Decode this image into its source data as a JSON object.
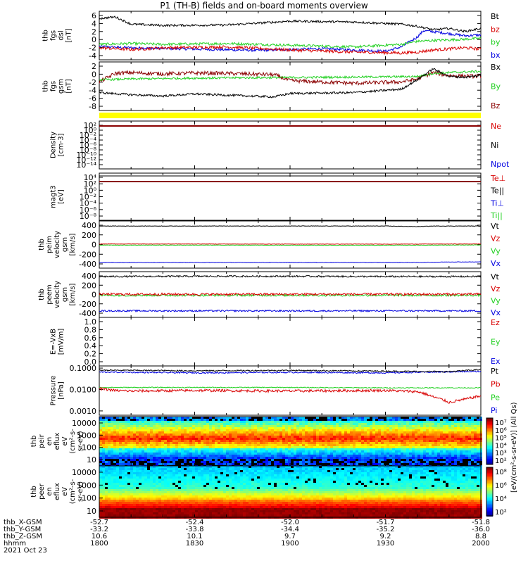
{
  "title": "P1 (TH-B) fields and on-board moments overview",
  "colors": {
    "black": "#000000",
    "red": "#d80000",
    "green": "#20d020",
    "blue": "#0000e0",
    "darkred": "#8a0000",
    "yellow": "#ffff00"
  },
  "chart_data": {
    "type": "line",
    "time_range": [
      "18:00",
      "20:00"
    ],
    "panels": [
      {
        "id": "fgs_dsl",
        "ylabel": [
          "thb",
          "fgs",
          "dsl",
          "[nT]"
        ],
        "yticks": [
          "6",
          "4",
          "2",
          "0",
          "-2",
          "-4"
        ],
        "ylim": [
          -4.8,
          6.5
        ],
        "series": [
          {
            "name": "Bt",
            "color": "black",
            "times": [
              0,
              5,
              10,
              20,
              40,
              60,
              80,
              95,
              100,
              105,
              110,
              115,
              120
            ],
            "values": [
              4.8,
              5.2,
              3.5,
              3.2,
              3.3,
              4.2,
              4.0,
              3.5,
              3.0,
              2.2,
              2.5,
              1.8,
              2.5
            ],
            "noise": 0.25
          },
          {
            "name": "bz",
            "color": "red",
            "times": [
              0,
              10,
              20,
              40,
              60,
              80,
              95,
              100,
              105,
              115,
              120
            ],
            "values": [
              -2.0,
              -2.4,
              -2.0,
              -1.8,
              -2.5,
              -3.0,
              -3.2,
              -3.0,
              -2.5,
              -2.0,
              -2.3
            ],
            "noise": 0.35
          },
          {
            "name": "by",
            "color": "green",
            "times": [
              0,
              10,
              20,
              40,
              60,
              80,
              95,
              100,
              105,
              115,
              120
            ],
            "values": [
              -1.2,
              -1.0,
              -1.2,
              -1.0,
              -1.4,
              -1.8,
              -1.2,
              -0.5,
              -0.3,
              0.0,
              0.2
            ],
            "noise": 0.3
          },
          {
            "name": "bx",
            "color": "blue",
            "times": [
              0,
              10,
              30,
              50,
              70,
              90,
              95,
              100,
              102,
              108,
              115,
              120
            ],
            "values": [
              -1.7,
              -2.0,
              -2.3,
              -2.6,
              -2.2,
              -2.8,
              -1.8,
              0.5,
              2.0,
              1.5,
              0.8,
              1.0
            ],
            "noise": 0.3
          }
        ]
      },
      {
        "id": "fgs_gsm",
        "ylabel": [
          "thb",
          "fgs",
          "gsm",
          "[nT]"
        ],
        "yticks": [
          "2",
          "0",
          "-2",
          "-4",
          "-6",
          "-8"
        ],
        "ylim": [
          -9.2,
          2.2
        ],
        "series": [
          {
            "name": "Bx",
            "color": "black",
            "times": [
              0,
              10,
              20,
              30,
              40,
              55,
              60,
              80,
              95,
              100,
              105,
              110,
              115,
              120
            ],
            "values": [
              -5.0,
              -5.5,
              -5.8,
              -5.3,
              -5.6,
              -6.0,
              -5.2,
              -5.0,
              -4.2,
              -2.0,
              0.6,
              -1.2,
              -1.4,
              -1.0
            ],
            "noise": 0.25
          },
          {
            "name": "By",
            "color": "green",
            "times": [
              0,
              10,
              30,
              50,
              70,
              90,
              100,
              105,
              110,
              120
            ],
            "values": [
              -2.0,
              -1.8,
              -1.6,
              -1.5,
              -1.4,
              -1.3,
              -1.2,
              -0.5,
              -0.3,
              0.0
            ],
            "noise": 0.25
          },
          {
            "name": "Bz",
            "color": "darkred",
            "times": [
              0,
              5,
              10,
              20,
              30,
              40,
              55,
              60,
              80,
              95,
              100,
              105,
              110,
              120
            ],
            "values": [
              -2.5,
              -0.5,
              -0.3,
              -0.6,
              -0.4,
              -0.5,
              -0.8,
              -2.2,
              -2.8,
              -2.5,
              -1.8,
              -0.3,
              -1.0,
              -1.2
            ],
            "noise": 0.45
          }
        ]
      },
      {
        "id": "flag",
        "type": "bar"
      },
      {
        "id": "density",
        "ylabel": [
          "Density",
          "[cm-3]"
        ],
        "yticks": [
          "10²",
          "10⁰",
          "10⁻²",
          "10⁻⁴",
          "10⁻⁶",
          "10⁻⁸",
          "10⁻¹⁰",
          "10⁻¹²",
          "10⁻¹⁴"
        ],
        "legend": [
          {
            "name": "Ne",
            "color": "red"
          },
          {
            "name": "Ni",
            "color": "black"
          },
          {
            "name": "Npot",
            "color": "blue"
          }
        ]
      },
      {
        "id": "temperature",
        "ylabel": [
          "magt3",
          "[eV]"
        ],
        "yticks": [
          "10⁴",
          "10²",
          "10⁰",
          "10⁻²",
          "10⁻⁴",
          "10⁻⁶",
          "10⁻⁸"
        ],
        "legend": [
          {
            "name": "Te⊥",
            "color": "red"
          },
          {
            "name": "Te||",
            "color": "black"
          },
          {
            "name": "Ti⊥",
            "color": "blue"
          },
          {
            "name": "Ti||",
            "color": "green"
          }
        ]
      },
      {
        "id": "peim",
        "ylabel": [
          "thb",
          "peim",
          "velocity",
          "gsm",
          "[km/s]"
        ],
        "yticks": [
          "400",
          "200",
          "0",
          "-200",
          "-400"
        ],
        "ylim": [
          -420,
          420
        ],
        "series": [
          {
            "name": "Vt",
            "color": "black",
            "times": [
              0,
              30,
              60,
              90,
              100,
              105,
              120
            ],
            "values": [
              330,
              330,
              330,
              330,
              320,
              330,
              330
            ],
            "noise": 4
          },
          {
            "name": "Vz",
            "color": "red",
            "times": [
              0,
              30,
              60,
              90,
              120
            ],
            "values": [
              10,
              10,
              8,
              8,
              10
            ],
            "noise": 4
          },
          {
            "name": "Vy",
            "color": "green",
            "times": [
              0,
              30,
              60,
              90,
              120
            ],
            "values": [
              -10,
              -10,
              -12,
              -12,
              -8
            ],
            "noise": 4
          },
          {
            "name": "Vx",
            "color": "blue",
            "times": [
              0,
              30,
              60,
              90,
              100,
              110,
              120
            ],
            "values": [
              -320,
              -320,
              -320,
              -320,
              -320,
              -310,
              -310
            ],
            "noise": 4
          }
        ]
      },
      {
        "id": "peem",
        "ylabel": [
          "thb",
          "peem",
          "velocity",
          "gsm",
          "[km/s]"
        ],
        "yticks": [
          "400",
          "200",
          "0",
          "-200",
          "-400"
        ],
        "ylim": [
          -420,
          420
        ],
        "series": [
          {
            "name": "Vt",
            "color": "black",
            "times": [
              0,
              30,
              60,
              90,
              120
            ],
            "values": [
              330,
              335,
              335,
              330,
              330
            ],
            "noise": 15
          },
          {
            "name": "Vz",
            "color": "red",
            "times": [
              0,
              30,
              60,
              90,
              120
            ],
            "values": [
              5,
              5,
              5,
              5,
              5
            ],
            "noise": 22
          },
          {
            "name": "Vy",
            "color": "green",
            "times": [
              0,
              30,
              60,
              90,
              120
            ],
            "values": [
              -15,
              -15,
              -15,
              -15,
              -15
            ],
            "noise": 18
          },
          {
            "name": "Vx",
            "color": "blue",
            "times": [
              0,
              30,
              60,
              90,
              120
            ],
            "values": [
              -300,
              -300,
              -300,
              -300,
              -300
            ],
            "noise": 15
          }
        ]
      },
      {
        "id": "efield",
        "ylabel": [
          "E=-VxB",
          "[mV/m]"
        ],
        "yticks": [
          "1.0",
          "0.8",
          "0.6",
          "0.4",
          "0.2",
          "0.0"
        ],
        "legend": [
          {
            "name": "Ez",
            "color": "red"
          },
          {
            "name": "Ey",
            "color": "green"
          },
          {
            "name": "Ex",
            "color": "blue"
          }
        ]
      },
      {
        "id": "pressure",
        "ylabel": [
          "Pressure",
          "[nPa]"
        ],
        "yticks": [
          "0.1000",
          "0.0100",
          "0.0010"
        ],
        "ylim_log": [
          -3.2,
          -0.9
        ],
        "series": [
          {
            "name": "Pt",
            "color": "black",
            "times": [
              0,
              30,
              60,
              90,
              100,
              110,
              120
            ],
            "values": [
              0.08,
              0.075,
              0.078,
              0.072,
              0.07,
              0.068,
              0.085
            ],
            "noise": 0.03
          },
          {
            "name": "Pb",
            "color": "red",
            "times": [
              0,
              5,
              10,
              30,
              60,
              90,
              100,
              105,
              110,
              115,
              120
            ],
            "values": [
              0.011,
              0.009,
              0.0085,
              0.009,
              0.0085,
              0.009,
              0.008,
              0.0045,
              0.0025,
              0.0035,
              0.005
            ],
            "noise": 0.06
          },
          {
            "name": "Pe",
            "color": "green",
            "times": [
              0,
              30,
              60,
              90,
              120
            ],
            "values": [
              0.0125,
              0.0125,
              0.0125,
              0.012,
              0.012
            ],
            "noise": 0.02
          },
          {
            "name": "Pi",
            "color": "blue",
            "times": [
              0,
              30,
              60,
              90,
              120
            ],
            "values": [
              0.065,
              0.06,
              0.063,
              0.06,
              0.07
            ],
            "noise": 0.03
          }
        ]
      },
      {
        "id": "peir",
        "type": "heatmap",
        "ylabel": [
          "thb",
          "peir",
          "en",
          "eflux",
          "eV",
          "(cm²-s-",
          "sr-eV)"
        ],
        "yticks": [
          "10000",
          "1000",
          "100",
          "10"
        ],
        "colorbar_ticks": [
          "10⁷",
          "10⁶",
          "10⁵",
          "10⁴",
          "10³",
          "10²"
        ],
        "colorbar_label": "[eV/(cm²-s-sr-eV)] (All Qs)"
      },
      {
        "id": "peer",
        "type": "heatmap",
        "ylabel": [
          "thb",
          "peer",
          "en",
          "eflux",
          "eV",
          "(cm²-s-",
          "sr-eV)"
        ],
        "yticks": [
          "10000",
          "1000",
          "100",
          "10"
        ],
        "colorbar_ticks": [
          "10⁸",
          "10⁶",
          "10⁴",
          "10²"
        ],
        "colorbar_label": "[eV/(cm²-s-sr-eV)]"
      }
    ],
    "x_axis": {
      "row_labels": [
        "thb_X-GSM",
        "thb_Y-GSM",
        "thb_Z-GSM",
        "hhmm",
        "2021 Oct 23"
      ],
      "ticks": [
        {
          "t": 0,
          "rows": [
            "-52.7",
            "-33.2",
            "10.6",
            "1800"
          ]
        },
        {
          "t": 30,
          "rows": [
            "-52.4",
            "-33.8",
            "10.1",
            "1830"
          ]
        },
        {
          "t": 60,
          "rows": [
            "-52.0",
            "-34.4",
            "9.7",
            "1900"
          ]
        },
        {
          "t": 90,
          "rows": [
            "-51.7",
            "-35.2",
            "9.2",
            "1930"
          ]
        },
        {
          "t": 120,
          "rows": [
            "-51.8",
            "-36.0",
            "8.8",
            "2000"
          ]
        }
      ]
    }
  }
}
